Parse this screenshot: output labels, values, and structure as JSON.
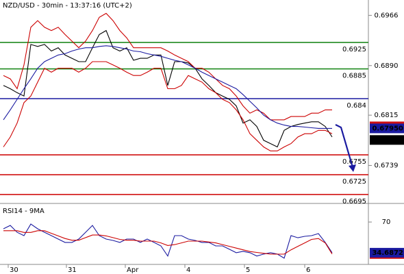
{
  "chart_data": [
    {
      "type": "line",
      "title": "NZD/USD - 30min - 13:37:16 (UTC+2)",
      "xlim": [
        -0.5,
        53.3
      ],
      "ylim": [
        0.66815,
        0.69892
      ],
      "yticks": [
        0.6966,
        {
          "value": 0.689,
          "label": "0.6890"
        },
        0.6815,
        0.6739
      ],
      "grid": false,
      "series": [
        {
          "color": "#000000",
          "values": [
            0.686,
            0.6855,
            0.6849,
            0.6844,
            0.6922,
            0.6919,
            0.6922,
            0.6912,
            0.6917,
            0.6906,
            0.6901,
            0.6896,
            0.6896,
            0.6917,
            0.6937,
            0.6943,
            0.6917,
            0.6912,
            0.6917,
            0.6898,
            0.6901,
            0.6901,
            0.6906,
            0.6906,
            0.686,
            0.6896,
            0.6896,
            0.6894,
            0.6886,
            0.687,
            0.686,
            0.6849,
            0.6844,
            0.6839,
            0.6829,
            0.6803,
            0.6808,
            0.6798,
            0.6777,
            0.6772,
            0.6767,
            0.6792,
            0.6798,
            0.6801,
            0.6803,
            0.6805,
            0.6805,
            0.6798,
            0.6782
          ]
        },
        {
          "color": "#cc0000",
          "values": [
            0.6875,
            0.687,
            0.6855,
            0.6891,
            0.6948,
            0.6958,
            0.6948,
            0.6943,
            0.6948,
            0.6937,
            0.6927,
            0.6917,
            0.6927,
            0.6943,
            0.6963,
            0.6969,
            0.6958,
            0.6943,
            0.6932,
            0.6917,
            0.6917,
            0.6917,
            0.6917,
            0.6917,
            0.6912,
            0.6906,
            0.6901,
            0.6896,
            0.6886,
            0.6886,
            0.688,
            0.687,
            0.686,
            0.6855,
            0.6844,
            0.6829,
            0.6818,
            0.6823,
            0.6818,
            0.6808,
            0.6808,
            0.6808,
            0.6813,
            0.6813,
            0.6813,
            0.6818,
            0.6818,
            0.6823,
            0.6823
          ]
        },
        {
          "color": "#cc0000",
          "values": [
            0.6767,
            0.6782,
            0.6803,
            0.6834,
            0.6844,
            0.6865,
            0.6886,
            0.688,
            0.6886,
            0.6886,
            0.6886,
            0.688,
            0.6886,
            0.6896,
            0.6896,
            0.6896,
            0.6891,
            0.6886,
            0.688,
            0.6875,
            0.6875,
            0.688,
            0.6886,
            0.6886,
            0.6855,
            0.6855,
            0.686,
            0.6875,
            0.687,
            0.6865,
            0.6855,
            0.6849,
            0.6839,
            0.6834,
            0.6823,
            0.6808,
            0.6787,
            0.6777,
            0.6767,
            0.6761,
            0.6761,
            0.6767,
            0.6772,
            0.6782,
            0.6787,
            0.6787,
            0.6792,
            0.6792,
            0.6787
          ]
        },
        {
          "color": "#1a1aa0",
          "values": [
            0.6808,
            0.6823,
            0.6839,
            0.6855,
            0.687,
            0.6886,
            0.6896,
            0.6901,
            0.6906,
            0.6908,
            0.6912,
            0.6915,
            0.6917,
            0.6917,
            0.6919,
            0.692,
            0.6919,
            0.6917,
            0.6915,
            0.6912,
            0.6911,
            0.6908,
            0.6906,
            0.6904,
            0.6901,
            0.6898,
            0.6896,
            0.6891,
            0.6886,
            0.688,
            0.6875,
            0.687,
            0.6865,
            0.686,
            0.6855,
            0.6846,
            0.6836,
            0.6826,
            0.6815,
            0.6808,
            0.6803,
            0.68,
            0.6798,
            0.6798,
            0.6797,
            0.6796,
            0.6795,
            0.6795,
            0.6795
          ]
        }
      ],
      "levels": [
        {
          "value": 0.6925,
          "color": "#1f8a1f"
        },
        {
          "value": 0.6885,
          "color": "#1f8a1f"
        },
        {
          "value": 0.684,
          "color": "#1a1aa0"
        },
        {
          "value": 0.6755,
          "color": "#d01010"
        },
        {
          "value": 0.6725,
          "color": "#d01010"
        },
        {
          "value": 0.6695,
          "color": "#d01010"
        }
      ],
      "markers": [
        {
          "value": 0.67981,
          "color": "#d01010"
        },
        {
          "value": 0.6795,
          "label": "0.67950",
          "color": "#1a1aa0"
        },
        {
          "value": 0.67775,
          "color": "#000000"
        }
      ]
    },
    {
      "type": "line",
      "title": "RSI14 - 9MA",
      "xlim": [
        -0.5,
        53.3
      ],
      "ylim": [
        22,
        89
      ],
      "yticks": [
        70
      ],
      "xticks": [
        {
          "value": 0.7,
          "label": "30"
        },
        {
          "value": 9.2,
          "label": "31"
        },
        {
          "value": 17.8,
          "label": "Apr"
        },
        {
          "value": 26.5,
          "label": "4"
        },
        {
          "value": 35.2,
          "label": "5"
        },
        {
          "value": 44,
          "label": "6"
        }
      ],
      "series": [
        {
          "color": "#1a1aa0",
          "values": [
            62.2,
            66.1,
            58.2,
            54.3,
            67.6,
            62.2,
            58.2,
            54.3,
            50.4,
            46.5,
            46.5,
            50.4,
            58.2,
            66.1,
            54.3,
            50.4,
            48.8,
            46.5,
            50.4,
            50.4,
            46.5,
            50.4,
            46.5,
            42.5,
            30.8,
            54.3,
            54.3,
            50.4,
            48.8,
            46.5,
            46.5,
            42.5,
            42.5,
            38.6,
            34.7,
            36.3,
            34.7,
            30.8,
            33.1,
            34.7,
            33.1,
            28.4,
            54.3,
            51.9,
            53.5,
            54.3,
            56.7,
            46.5,
            34.7
          ]
        },
        {
          "color": "#cc0000",
          "values": [
            60,
            60,
            60,
            58,
            58,
            60,
            60,
            57,
            54,
            51,
            49,
            49,
            52,
            55,
            55,
            54,
            52,
            50,
            49,
            49,
            48,
            48,
            48,
            46,
            43,
            44,
            46,
            48,
            48,
            48,
            47,
            46,
            44,
            42,
            40,
            38,
            36,
            35,
            34,
            33,
            33,
            33,
            38,
            42,
            46,
            50,
            51,
            46,
            33.2
          ]
        }
      ],
      "markers": [
        {
          "value": 33.2041,
          "color": "#d01010"
        },
        {
          "value": 34.6872,
          "color": "#1a1aa0"
        }
      ]
    }
  ]
}
